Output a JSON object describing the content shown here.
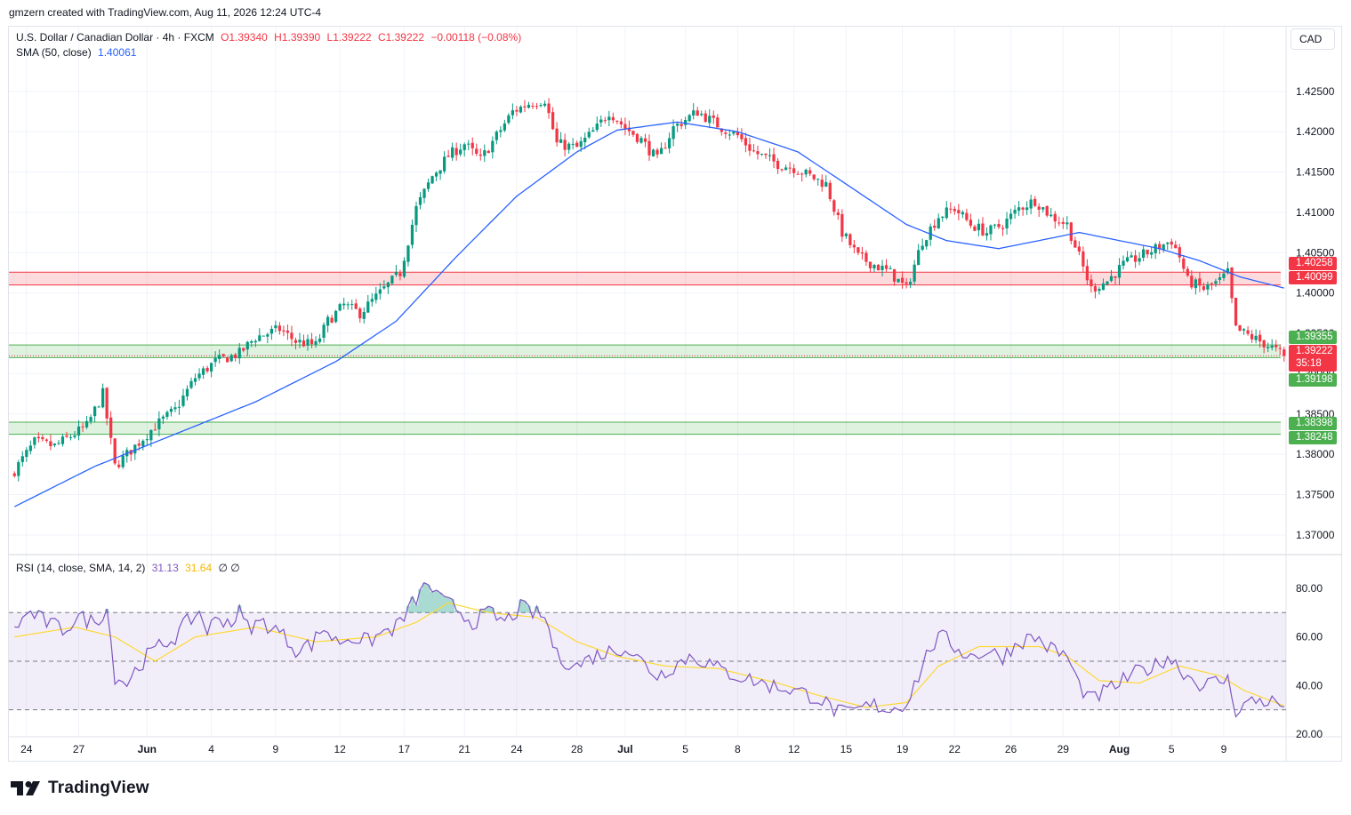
{
  "header": {
    "created_by": "gmzern created with TradingView.com, Aug 11, 2026 12:24 UTC-4"
  },
  "legend": {
    "symbol": "U.S. Dollar / Canadian Dollar · 4h · FXCM",
    "open": "O1.39340",
    "high": "H1.39390",
    "low": "L1.39222",
    "close": "C1.39222",
    "change": "−0.00118 (−0.08%)",
    "sma_label": "SMA (50, close)",
    "sma_value": "1.40061",
    "rsi_label": "RSI (14, close, SMA, 14, 2)",
    "rsi_value": "31.13",
    "rsi_sma_value": "31.64",
    "rsi_extra": "∅ ∅"
  },
  "currency": "CAD",
  "brand": {
    "name": "TradingView"
  },
  "colors": {
    "up": "#089981",
    "down": "#f23645",
    "sma": "#2962ff",
    "rsi": "#7e57c2",
    "rsi_sma": "#fdd835",
    "resistance_zone": "#f23645",
    "support_zone": "#4caf50"
  },
  "zone_labels": {
    "r_top": "1.40258",
    "r_bot": "1.40099",
    "s1_top": "1.39355",
    "s1_bot": "1.39198",
    "s2_top": "1.38398",
    "s2_bot": "1.38248",
    "last_price": "1.39222",
    "countdown": "35:18"
  },
  "chart_data": [
    {
      "type": "candlestick",
      "title": "U.S. Dollar / Canadian Dollar · 4h · FXCM",
      "ylim": [
        1.368,
        1.4295
      ],
      "y_ticks": [
        "1.37000",
        "1.37500",
        "1.38000",
        "1.38500",
        "1.39000",
        "1.39500",
        "1.40000",
        "1.40500",
        "1.41000",
        "1.41500",
        "1.42000",
        "1.42500"
      ],
      "x_ticks": [
        "24",
        "27",
        "Jun",
        "4",
        "9",
        "12",
        "17",
        "21",
        "24",
        "28",
        "Jul",
        "5",
        "8",
        "12",
        "15",
        "19",
        "22",
        "26",
        "29",
        "Aug",
        "5",
        "9"
      ],
      "x_tick_bars": [
        3,
        16,
        33,
        49,
        65,
        81,
        97,
        112,
        125,
        140,
        152,
        167,
        180,
        194,
        207,
        221,
        234,
        248,
        261,
        275,
        288,
        301
      ],
      "close_anchors": [
        [
          0,
          1.378
        ],
        [
          5,
          1.3815
        ],
        [
          10,
          1.381
        ],
        [
          18,
          1.3835
        ],
        [
          22,
          1.3875
        ],
        [
          25,
          1.3785
        ],
        [
          30,
          1.381
        ],
        [
          35,
          1.3835
        ],
        [
          40,
          1.3855
        ],
        [
          45,
          1.3895
        ],
        [
          50,
          1.3915
        ],
        [
          56,
          1.3925
        ],
        [
          60,
          1.3945
        ],
        [
          66,
          1.3955
        ],
        [
          70,
          1.394
        ],
        [
          75,
          1.3935
        ],
        [
          78,
          1.3965
        ],
        [
          82,
          1.3985
        ],
        [
          86,
          1.3975
        ],
        [
          92,
          1.4005
        ],
        [
          96,
          1.4025
        ],
        [
          100,
          1.4105
        ],
        [
          104,
          1.4145
        ],
        [
          108,
          1.417
        ],
        [
          112,
          1.4185
        ],
        [
          116,
          1.4165
        ],
        [
          120,
          1.4195
        ],
        [
          124,
          1.4225
        ],
        [
          128,
          1.4235
        ],
        [
          132,
          1.424
        ],
        [
          135,
          1.4185
        ],
        [
          140,
          1.418
        ],
        [
          145,
          1.4205
        ],
        [
          148,
          1.4225
        ],
        [
          152,
          1.4205
        ],
        [
          156,
          1.419
        ],
        [
          160,
          1.4165
        ],
        [
          164,
          1.4205
        ],
        [
          170,
          1.4225
        ],
        [
          176,
          1.4205
        ],
        [
          180,
          1.4195
        ],
        [
          184,
          1.4175
        ],
        [
          190,
          1.416
        ],
        [
          194,
          1.4155
        ],
        [
          198,
          1.4145
        ],
        [
          202,
          1.4135
        ],
        [
          206,
          1.4075
        ],
        [
          210,
          1.4045
        ],
        [
          214,
          1.4035
        ],
        [
          218,
          1.4025
        ],
        [
          222,
          1.4005
        ],
        [
          226,
          1.4065
        ],
        [
          230,
          1.4095
        ],
        [
          234,
          1.4105
        ],
        [
          238,
          1.4085
        ],
        [
          242,
          1.4075
        ],
        [
          246,
          1.4085
        ],
        [
          250,
          1.4105
        ],
        [
          254,
          1.4115
        ],
        [
          258,
          1.4095
        ],
        [
          262,
          1.4085
        ],
        [
          265,
          1.4045
        ],
        [
          268,
          1.4005
        ],
        [
          272,
          1.4015
        ],
        [
          276,
          1.4035
        ],
        [
          280,
          1.4045
        ],
        [
          284,
          1.4055
        ],
        [
          288,
          1.4065
        ],
        [
          290,
          1.4045
        ],
        [
          292,
          1.4015
        ],
        [
          296,
          1.4005
        ],
        [
          300,
          1.4015
        ],
        [
          302,
          1.4025
        ],
        [
          304,
          1.3955
        ],
        [
          308,
          1.3945
        ],
        [
          312,
          1.3935
        ],
        [
          316,
          1.39222
        ]
      ],
      "sma_50": {
        "name": "SMA (50, close)",
        "anchors": [
          [
            0,
            1.3735
          ],
          [
            20,
            1.3785
          ],
          [
            40,
            1.3825
          ],
          [
            60,
            1.3865
          ],
          [
            80,
            1.3915
          ],
          [
            95,
            1.3965
          ],
          [
            110,
            1.4045
          ],
          [
            125,
            1.412
          ],
          [
            140,
            1.4175
          ],
          [
            150,
            1.4202
          ],
          [
            165,
            1.4212
          ],
          [
            180,
            1.42
          ],
          [
            195,
            1.4175
          ],
          [
            210,
            1.4125
          ],
          [
            222,
            1.4085
          ],
          [
            232,
            1.4065
          ],
          [
            245,
            1.4055
          ],
          [
            255,
            1.4065
          ],
          [
            265,
            1.4075
          ],
          [
            275,
            1.4065
          ],
          [
            285,
            1.4055
          ],
          [
            295,
            1.404
          ],
          [
            305,
            1.402
          ],
          [
            316,
            1.40061
          ]
        ]
      },
      "zones": [
        {
          "name": "resistance",
          "top": 1.40258,
          "bottom": 1.40099
        },
        {
          "name": "support-1",
          "top": 1.39355,
          "bottom": 1.39198
        },
        {
          "name": "support-2",
          "top": 1.38398,
          "bottom": 1.38248
        }
      ],
      "last_price": 1.39222
    },
    {
      "type": "line",
      "title": "RSI (14, close, SMA, 14, 2)",
      "ylim": [
        20,
        88
      ],
      "y_ticks": [
        "20.00",
        "40.00",
        "60.00",
        "80.00"
      ],
      "bands": [
        70,
        50,
        30
      ],
      "rsi_anchors": [
        [
          0,
          64
        ],
        [
          4,
          70
        ],
        [
          8,
          66
        ],
        [
          12,
          63
        ],
        [
          16,
          68
        ],
        [
          20,
          66
        ],
        [
          23,
          72
        ],
        [
          25,
          44
        ],
        [
          28,
          41
        ],
        [
          30,
          46
        ],
        [
          33,
          52
        ],
        [
          36,
          56
        ],
        [
          40,
          60
        ],
        [
          43,
          66
        ],
        [
          46,
          70
        ],
        [
          48,
          63
        ],
        [
          51,
          68
        ],
        [
          54,
          66
        ],
        [
          56,
          70
        ],
        [
          58,
          64
        ],
        [
          62,
          66
        ],
        [
          66,
          62
        ],
        [
          70,
          55
        ],
        [
          74,
          57
        ],
        [
          77,
          64
        ],
        [
          80,
          58
        ],
        [
          84,
          60
        ],
        [
          88,
          58
        ],
        [
          92,
          62
        ],
        [
          95,
          64
        ],
        [
          97,
          68
        ],
        [
          100,
          76
        ],
        [
          103,
          82
        ],
        [
          106,
          75
        ],
        [
          110,
          72
        ],
        [
          114,
          66
        ],
        [
          118,
          70
        ],
        [
          122,
          66
        ],
        [
          126,
          72
        ],
        [
          129,
          70
        ],
        [
          132,
          68
        ],
        [
          135,
          52
        ],
        [
          140,
          48
        ],
        [
          144,
          52
        ],
        [
          148,
          54
        ],
        [
          152,
          56
        ],
        [
          156,
          50
        ],
        [
          160,
          44
        ],
        [
          164,
          48
        ],
        [
          168,
          52
        ],
        [
          172,
          50
        ],
        [
          176,
          46
        ],
        [
          180,
          44
        ],
        [
          184,
          42
        ],
        [
          188,
          40
        ],
        [
          192,
          39
        ],
        [
          196,
          37
        ],
        [
          200,
          35
        ],
        [
          204,
          30
        ],
        [
          207,
          28
        ],
        [
          210,
          30
        ],
        [
          214,
          32
        ],
        [
          218,
          30
        ],
        [
          222,
          33
        ],
        [
          225,
          44
        ],
        [
          228,
          56
        ],
        [
          231,
          60
        ],
        [
          234,
          56
        ],
        [
          238,
          52
        ],
        [
          242,
          54
        ],
        [
          246,
          52
        ],
        [
          250,
          58
        ],
        [
          254,
          60
        ],
        [
          258,
          55
        ],
        [
          262,
          52
        ],
        [
          265,
          40
        ],
        [
          268,
          34
        ],
        [
          272,
          38
        ],
        [
          276,
          42
        ],
        [
          280,
          46
        ],
        [
          284,
          48
        ],
        [
          287,
          52
        ],
        [
          289,
          49
        ],
        [
          292,
          44
        ],
        [
          296,
          40
        ],
        [
          300,
          42
        ],
        [
          302,
          42
        ],
        [
          304,
          30
        ],
        [
          307,
          33
        ],
        [
          310,
          34
        ],
        [
          314,
          33
        ],
        [
          316,
          31.13
        ]
      ],
      "rsi_sma_anchors": [
        [
          0,
          60
        ],
        [
          15,
          64
        ],
        [
          25,
          60
        ],
        [
          35,
          50
        ],
        [
          45,
          60
        ],
        [
          60,
          64
        ],
        [
          75,
          58
        ],
        [
          90,
          60
        ],
        [
          100,
          66
        ],
        [
          108,
          74
        ],
        [
          118,
          70
        ],
        [
          130,
          68
        ],
        [
          140,
          58
        ],
        [
          150,
          52
        ],
        [
          162,
          48
        ],
        [
          175,
          47
        ],
        [
          190,
          41
        ],
        [
          200,
          36
        ],
        [
          212,
          31
        ],
        [
          222,
          33
        ],
        [
          230,
          48
        ],
        [
          240,
          56
        ],
        [
          255,
          56
        ],
        [
          262,
          52
        ],
        [
          270,
          42
        ],
        [
          280,
          41
        ],
        [
          290,
          48
        ],
        [
          300,
          44
        ],
        [
          306,
          38
        ],
        [
          316,
          31.64
        ]
      ],
      "series": [
        {
          "name": "RSI",
          "last": 31.13
        },
        {
          "name": "SMA",
          "last": 31.64
        }
      ]
    }
  ]
}
